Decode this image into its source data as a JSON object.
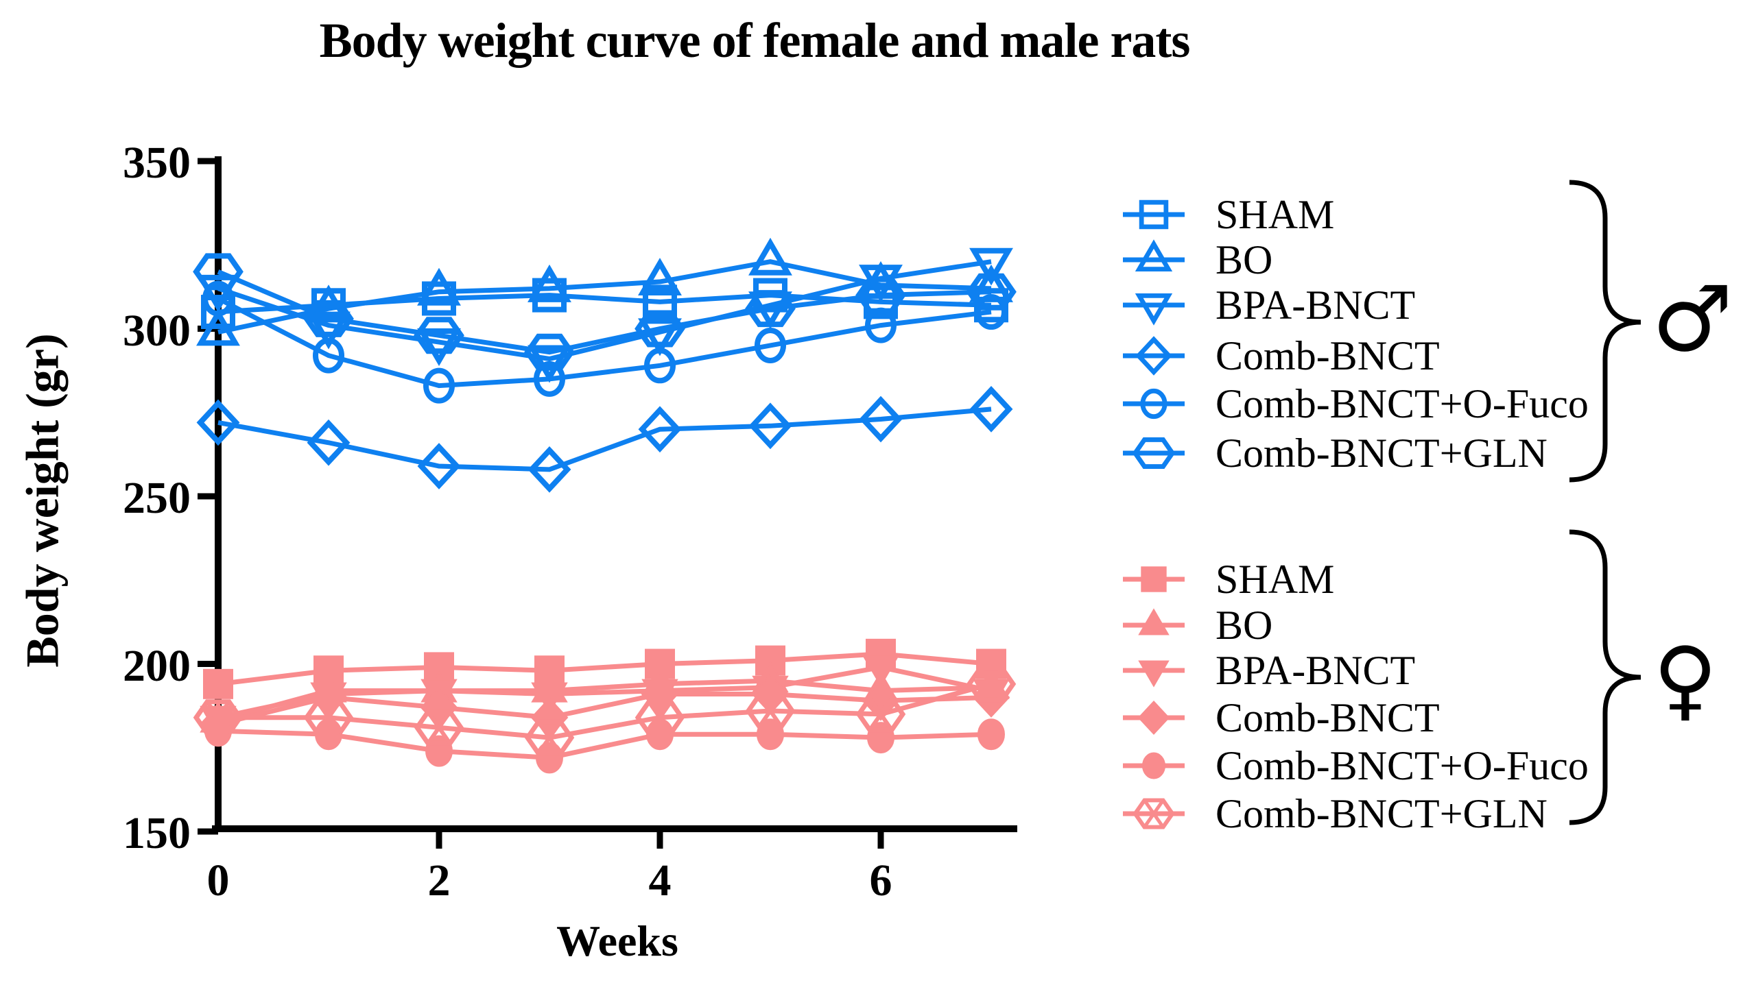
{
  "sex_symbols": {
    "male": "♂",
    "female": "♀"
  },
  "chart_data": {
    "type": "line",
    "title": "Body weight curve of female and male rats",
    "xlabel": "Weeks",
    "ylabel": "Body weight (gr)",
    "x": [
      0,
      1,
      2,
      3,
      4,
      5,
      6,
      7
    ],
    "xticks": [
      0,
      2,
      4,
      6
    ],
    "yticks": [
      150,
      200,
      250,
      300,
      350
    ],
    "xlim": [
      0,
      7.2
    ],
    "ylim": [
      150,
      350
    ],
    "grid": false,
    "legend_position": "right",
    "groups": [
      {
        "group": "male",
        "color": "#0E80F0",
        "marker_style": "open",
        "series": [
          {
            "name": "SHAM",
            "marker": "square",
            "values": [
              305,
              307,
              309,
              310,
              308,
              310,
              308,
              307
            ]
          },
          {
            "name": "BO",
            "marker": "triangle-up",
            "values": [
              299,
              306,
              311,
              312,
              314,
              320,
              313,
              312
            ]
          },
          {
            "name": "BPA-BNCT",
            "marker": "triangle-down",
            "values": [
              312,
              301,
              296,
              291,
              299,
              307,
              315,
              320
            ]
          },
          {
            "name": "Comb-BNCT",
            "marker": "diamond",
            "values": [
              272,
              266,
              259,
              258,
              270,
              271,
              273,
              276
            ]
          },
          {
            "name": "Comb-BNCT+O-Fuco",
            "marker": "circle",
            "values": [
              309,
              292,
              283,
              285,
              289,
              295,
              301,
              305
            ]
          },
          {
            "name": "Comb-BNCT+GLN",
            "marker": "hexagon",
            "values": [
              317,
              303,
              298,
              293,
              300,
              306,
              310,
              311
            ]
          }
        ]
      },
      {
        "group": "female",
        "color": "#F98B8D",
        "marker_style": "filled",
        "series": [
          {
            "name": "SHAM",
            "marker": "square",
            "values": [
              194,
              198,
              199,
              198,
              200,
              201,
              203,
              200
            ]
          },
          {
            "name": "BO",
            "marker": "triangle-up",
            "values": [
              183,
              192,
              192,
              192,
              194,
              195,
              192,
              193
            ]
          },
          {
            "name": "BPA-BNCT",
            "marker": "triangle-down",
            "values": [
              184,
              191,
              192,
              191,
              192,
              193,
              199,
              192
            ]
          },
          {
            "name": "Comb-BNCT",
            "marker": "diamond",
            "values": [
              182,
              190,
              187,
              184,
              191,
              191,
              189,
              190
            ]
          },
          {
            "name": "Comb-BNCT+O-Fuco",
            "marker": "circle",
            "values": [
              180,
              179,
              174,
              172,
              179,
              179,
              178,
              179
            ]
          },
          {
            "name": "Comb-BNCT+GLN",
            "marker": "hexagon-x",
            "values": [
              184,
              184,
              181,
              178,
              184,
              186,
              185,
              194
            ]
          }
        ]
      }
    ]
  }
}
